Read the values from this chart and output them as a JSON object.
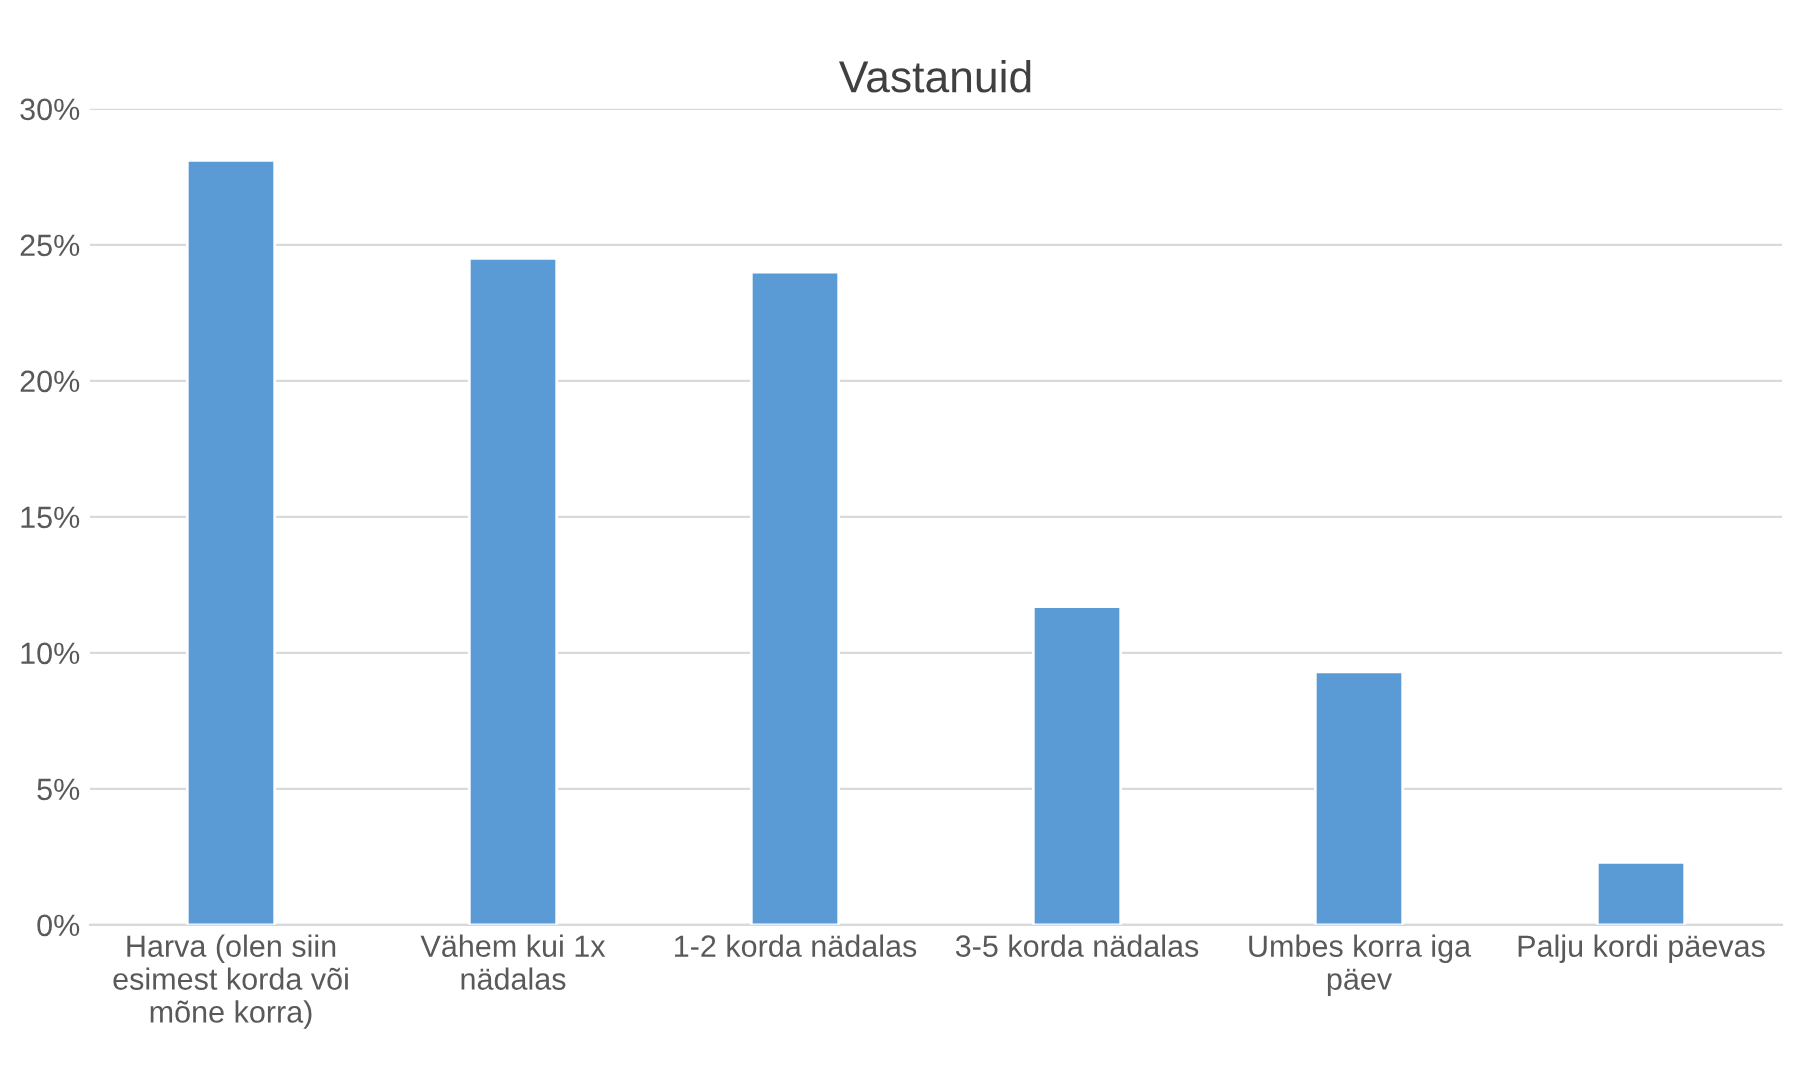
{
  "chart_data": {
    "type": "bar",
    "title": "Vastanuid",
    "categories": [
      "Harva (olen siin esimest korda või mõne korra)",
      "Vähem kui 1x nädalas",
      "1-2 korda nädalas",
      "3-5 korda nädalas",
      "Umbes korra iga päev",
      "Palju kordi päevas"
    ],
    "values": [
      28.1,
      24.5,
      24.0,
      11.7,
      9.3,
      2.3
    ],
    "color": "#5b9bd5",
    "ylim": [
      0,
      30
    ],
    "yticks": [
      {
        "value": 0,
        "label": "0%"
      },
      {
        "value": 5,
        "label": "5%"
      },
      {
        "value": 10,
        "label": "10%"
      },
      {
        "value": 15,
        "label": "15%"
      },
      {
        "value": 20,
        "label": "20%"
      },
      {
        "value": 25,
        "label": "25%"
      },
      {
        "value": 30,
        "label": "30%"
      }
    ],
    "grid": "y"
  }
}
